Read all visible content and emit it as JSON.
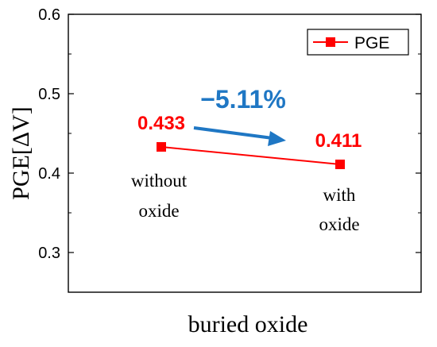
{
  "chart_data": {
    "type": "line",
    "title": "",
    "xlabel": "buried oxide",
    "ylabel": "PGE[ΔV]",
    "ylim": [
      0.25,
      0.6
    ],
    "yticks": [
      0.3,
      0.4,
      0.5,
      0.6
    ],
    "ytick_labels": [
      "0.3",
      "0.4",
      "0.5",
      "0.6"
    ],
    "grid": false,
    "legend": {
      "placement": "top-right"
    },
    "categories": [
      "without oxide",
      "with oxide"
    ],
    "series": [
      {
        "name": "PGE",
        "color": "#ff0000",
        "marker": "square",
        "values": [
          0.433,
          0.411
        ],
        "point_labels": [
          "0.433",
          "0.411"
        ],
        "category_labels": [
          [
            "without",
            "oxide"
          ],
          [
            "with",
            "oxide"
          ]
        ]
      }
    ],
    "annotations": [
      {
        "text": "−5.11%",
        "color": "#1f77c4",
        "kind": "percent-change",
        "arrow": "from without oxide to with oxide"
      }
    ]
  }
}
